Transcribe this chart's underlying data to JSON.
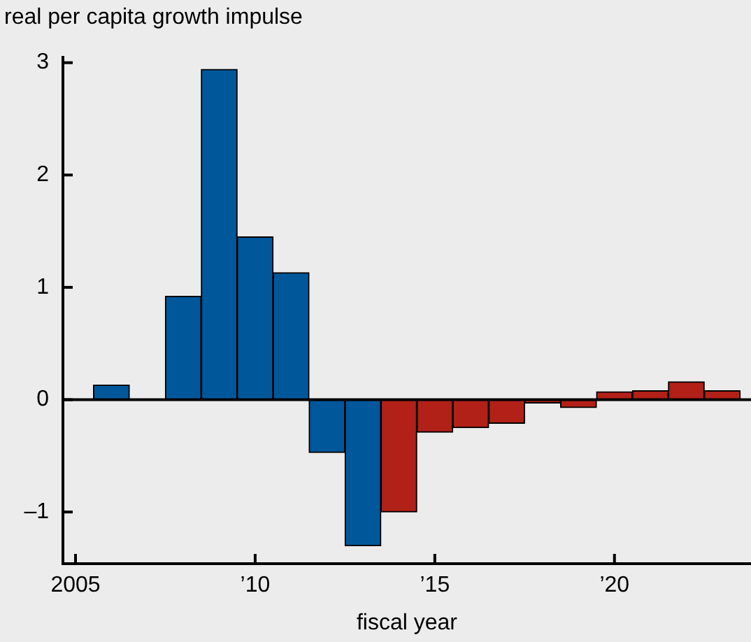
{
  "chart_data": {
    "type": "bar",
    "ylabel": "real per capita growth impulse",
    "xlabel": "fiscal year",
    "x": [
      2006,
      2007,
      2008,
      2009,
      2010,
      2011,
      2012,
      2013,
      2014,
      2015,
      2016,
      2017,
      2018,
      2019,
      2020,
      2021,
      2022,
      2023
    ],
    "values": [
      0.13,
      null,
      0.92,
      2.94,
      1.45,
      1.13,
      -0.47,
      -1.3,
      -1.0,
      -0.29,
      -0.25,
      -0.21,
      -0.03,
      -0.07,
      0.07,
      0.08,
      0.16,
      0.08
    ],
    "colors": [
      "#00589b",
      "#00589b",
      "#00589b",
      "#00589b",
      "#00589b",
      "#00589b",
      "#00589b",
      "#00589b",
      "#b22118",
      "#b22118",
      "#b22118",
      "#b22118",
      "#b22118",
      "#b22118",
      "#b22118",
      "#b22118",
      "#b22118",
      "#b22118"
    ],
    "xlim": [
      2004.65,
      2023.8
    ],
    "xticks": [
      2005,
      {
        "value": 2010,
        "label": "’10"
      },
      {
        "value": 2015,
        "label": "’15"
      },
      {
        "value": 2020,
        "label": "’20"
      }
    ],
    "ylim": [
      -1.46,
      3.06
    ],
    "yticks": [
      {
        "value": -1,
        "label": "–1"
      },
      0,
      1,
      2,
      3
    ],
    "ref_lines": [
      {
        "axis": "y",
        "value": 0,
        "color": "#000000"
      }
    ],
    "grid": false,
    "legend": false
  }
}
